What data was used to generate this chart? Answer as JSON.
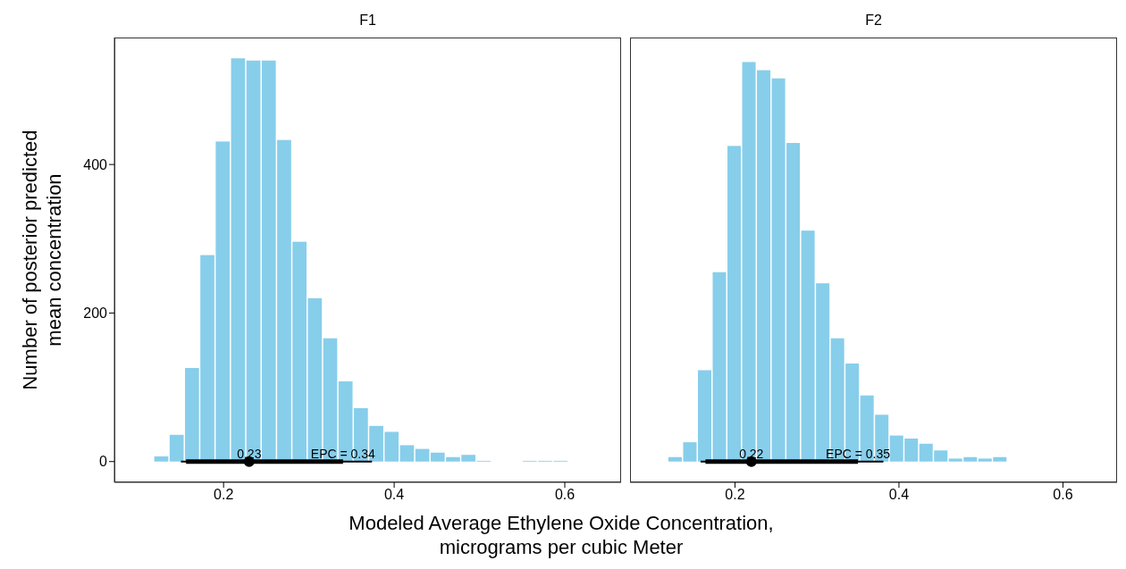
{
  "chart_data": [
    {
      "type": "histogram",
      "title": "F1",
      "ylabel": "Number of posterior predicted\nmean concentration",
      "xlabel": "Modeled Average Ethylene Oxide Concentration,\nmicrograms per cubic Meter",
      "bins": [
        0.118,
        0.136,
        0.154,
        0.172,
        0.19,
        0.208,
        0.226,
        0.244,
        0.262,
        0.28,
        0.298,
        0.316,
        0.334,
        0.352,
        0.37,
        0.388,
        0.406,
        0.424,
        0.442,
        0.46,
        0.478,
        0.496,
        0.514,
        0.532,
        0.55,
        0.568,
        0.586,
        0.604
      ],
      "values": [
        7,
        36,
        126,
        278,
        431,
        543,
        540,
        540,
        433,
        296,
        220,
        166,
        108,
        72,
        48,
        40,
        22,
        17,
        12,
        6,
        9,
        1,
        0,
        0,
        1,
        1,
        1
      ],
      "color": "#87ceeb",
      "xlim": [
        0.072,
        0.666
      ],
      "xticks": [
        0.2,
        0.4,
        0.6
      ],
      "ylim": [
        -28,
        571
      ],
      "yticks": [
        0,
        200,
        400
      ],
      "grid": false,
      "series": [
        {
          "type": "line",
          "x": [
            0.15,
            0.374
          ],
          "values": [
            0,
            0
          ],
          "color": "#000000"
        },
        {
          "type": "scatter",
          "x": [
            0.23
          ],
          "values": [
            0
          ],
          "xerrors": [
            [
              0.156,
              0.34
            ]
          ],
          "color": "#000000",
          "marker": "circle"
        }
      ],
      "annotations": [
        {
          "text": "0.23",
          "x": 0.23,
          "y": 0
        },
        {
          "text": "EPC =  0.34",
          "x": 0.34,
          "y": 0
        }
      ]
    },
    {
      "type": "histogram",
      "title": "F2",
      "tick_labels": "x",
      "bins": [
        0.118,
        0.136,
        0.154,
        0.172,
        0.19,
        0.208,
        0.226,
        0.244,
        0.262,
        0.28,
        0.298,
        0.316,
        0.334,
        0.352,
        0.37,
        0.388,
        0.406,
        0.424,
        0.442,
        0.46,
        0.478,
        0.496,
        0.514,
        0.532
      ],
      "values": [
        6,
        26,
        123,
        255,
        425,
        538,
        527,
        516,
        429,
        311,
        240,
        166,
        132,
        89,
        63,
        35,
        31,
        24,
        15,
        4,
        6,
        4,
        6
      ],
      "color": "#87ceeb",
      "xlim": [
        0.072,
        0.666
      ],
      "xticks": [
        0.2,
        0.4,
        0.6
      ],
      "ylim": [
        -28,
        571
      ],
      "yticks": [
        0,
        200,
        400
      ],
      "grid": false,
      "series": [
        {
          "type": "line",
          "x": [
            0.158,
            0.381
          ],
          "values": [
            0,
            0
          ],
          "color": "#000000"
        },
        {
          "type": "scatter",
          "x": [
            0.22
          ],
          "values": [
            0
          ],
          "xerrors": [
            [
              0.164,
              0.35
            ]
          ],
          "color": "#000000",
          "marker": "circle"
        }
      ],
      "annotations": [
        {
          "text": "0.22",
          "x": 0.22,
          "y": 0
        },
        {
          "text": "EPC =  0.35",
          "x": 0.35,
          "y": 0
        }
      ]
    }
  ]
}
